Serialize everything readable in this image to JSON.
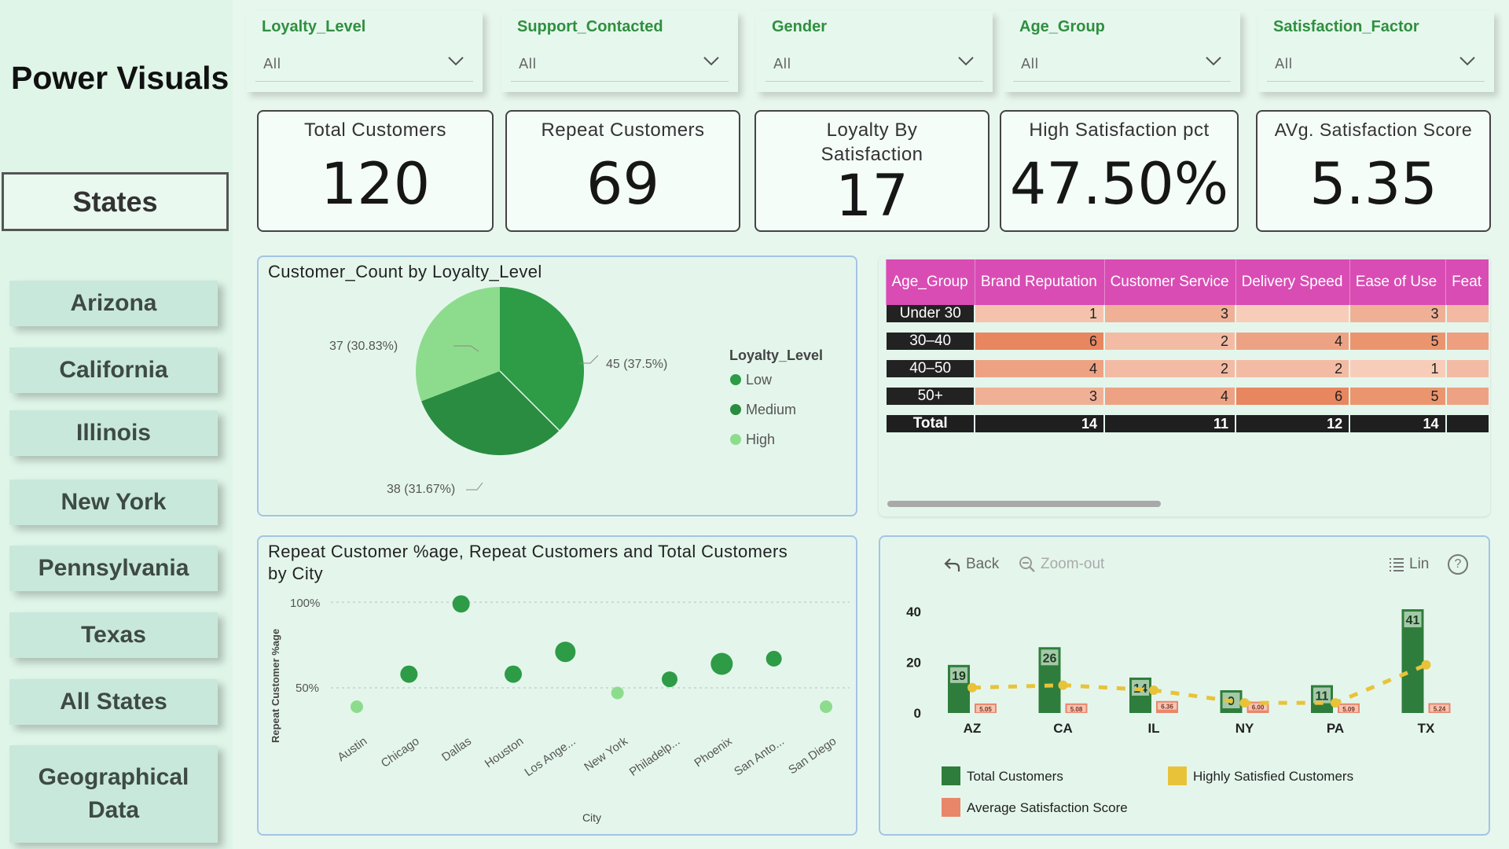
{
  "brand": "Power Visuals",
  "nav": {
    "header": "States",
    "items": [
      "Arizona",
      "California",
      "Illinois",
      "New York",
      "Pennsylvania",
      "Texas",
      "All States",
      "Geographical Data"
    ]
  },
  "slicers": [
    {
      "label": "Loyalty_Level",
      "value": "All"
    },
    {
      "label": "Support_Contacted",
      "value": "All"
    },
    {
      "label": "Gender",
      "value": "All"
    },
    {
      "label": "Age_Group",
      "value": "All"
    },
    {
      "label": "Satisfaction_Factor",
      "value": "All"
    }
  ],
  "kpis": [
    {
      "title": "Total Customers",
      "value": "120"
    },
    {
      "title": "Repeat Customers",
      "value": "69"
    },
    {
      "title": "Loyalty By Satisfaction",
      "value": "17"
    },
    {
      "title": "High Satisfaction pct",
      "value": "47.50%"
    },
    {
      "title": "AVg. Satisfaction Score",
      "value": "5.35"
    }
  ],
  "pie": {
    "title": "Customer_Count by Loyalty_Level",
    "legend_title": "Loyalty_Level",
    "labels": [
      "45 (37.5%)",
      "38 (31.67%)",
      "37 (30.83%)"
    ]
  },
  "matrix": {
    "headers": [
      "Age_Group",
      "Brand Reputation",
      "Customer Service",
      "Delivery Speed",
      "Ease of Use",
      "Feat"
    ],
    "rows": [
      {
        "label": "Under 30",
        "cells": [
          "1",
          "3",
          "",
          "3",
          ""
        ]
      },
      {
        "label": "30–40",
        "cells": [
          "6",
          "2",
          "4",
          "5",
          ""
        ]
      },
      {
        "label": "40–50",
        "cells": [
          "4",
          "2",
          "2",
          "1",
          ""
        ]
      },
      {
        "label": "50+",
        "cells": [
          "3",
          "4",
          "6",
          "5",
          ""
        ]
      }
    ],
    "total": {
      "label": "Total",
      "cells": [
        "14",
        "11",
        "12",
        "14",
        ""
      ]
    }
  },
  "scatter": {
    "title_line1": "Repeat Customer %age, Repeat Customers and Total Customers",
    "title_line2": "by City",
    "ylabel": "Repeat Customer %age",
    "xlabel": "City",
    "ytick_labels": [
      "100%",
      "50%"
    ]
  },
  "combo": {
    "toolbar": {
      "back": "Back",
      "zoom": "Zoom-out",
      "lin": "Lin",
      "help": "?"
    },
    "legend": [
      "Total Customers",
      "Highly Satisfied Customers",
      "Average Satisfaction Score"
    ]
  },
  "chart_data": [
    {
      "type": "pie",
      "title": "Customer_Count by Loyalty_Level",
      "legend": [
        "Low",
        "Medium",
        "High"
      ],
      "slices": [
        {
          "name": "Low",
          "value": 45,
          "pct": 37.5,
          "color": "#2e9b47"
        },
        {
          "name": "Medium",
          "value": 38,
          "pct": 31.67,
          "color": "#2a8c40"
        },
        {
          "name": "High",
          "value": 37,
          "pct": 30.83,
          "color": "#8ddc8d"
        }
      ]
    },
    {
      "type": "scatter",
      "title": "Repeat Customer %age, Repeat Customers and Total Customers by City",
      "xlabel": "City",
      "ylabel": "Repeat Customer %age",
      "ylim": [
        0,
        1
      ],
      "yticks": [
        0.5,
        1.0
      ],
      "categories": [
        "Austin",
        "Chicago",
        "Dallas",
        "Houston",
        "Los Ange...",
        "New York",
        "Philadelp...",
        "Phoenix",
        "San Anto...",
        "San Diego"
      ],
      "values": [
        0.39,
        0.58,
        0.99,
        0.58,
        0.71,
        0.47,
        0.55,
        0.64,
        0.67,
        0.39
      ],
      "sizes": [
        3,
        6,
        6,
        6,
        8,
        3,
        5,
        9,
        5,
        3
      ],
      "colors": [
        "#8ddc8d",
        "#2e9b47",
        "#2e9b47",
        "#2e9b47",
        "#2e9b47",
        "#8ddc8d",
        "#2e9b47",
        "#2e9b47",
        "#2e9b47",
        "#8ddc8d"
      ]
    },
    {
      "type": "bar",
      "categories": [
        "AZ",
        "CA",
        "IL",
        "NY",
        "PA",
        "TX"
      ],
      "ylim": [
        0,
        45
      ],
      "yticks": [
        0,
        20,
        40
      ],
      "series": [
        {
          "name": "Total Customers",
          "values": [
            19,
            26,
            14,
            9,
            11,
            41
          ],
          "labels": [
            "19",
            "26",
            "14",
            "9",
            "11",
            "41"
          ],
          "color": "#2f7d3c"
        },
        {
          "name": "Average Satisfaction Score",
          "values": [
            5.05,
            5.08,
            6.36,
            6.0,
            5.09,
            5.24
          ],
          "labels": [
            "5.05",
            "5.08",
            "6.36",
            "6.00",
            "5.09",
            "5.24"
          ],
          "color": "#e9866a"
        },
        {
          "name": "Highly Satisfied Customers",
          "type": "line",
          "values": [
            10,
            11,
            9,
            4,
            4,
            19
          ],
          "color": "#e8c33a"
        }
      ]
    }
  ]
}
